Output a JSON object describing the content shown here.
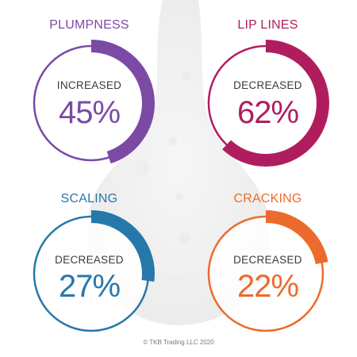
{
  "chart_data": [
    {
      "type": "pie",
      "title": "PLUMPNESS",
      "status": "INCREASED",
      "value": 45,
      "label": "45%",
      "color": "#7b4aa5"
    },
    {
      "type": "pie",
      "title": "LIP LINES",
      "status": "DECREASED",
      "value": 62,
      "label": "62%",
      "color": "#b01d5f"
    },
    {
      "type": "pie",
      "title": "SCALING",
      "status": "DECREASED",
      "value": 27,
      "label": "27%",
      "color": "#2778aa"
    },
    {
      "type": "pie",
      "title": "CRACKING",
      "status": "DECREASED",
      "value": 22,
      "label": "22%",
      "color": "#ec6b2c"
    }
  ],
  "footer": {
    "copyright": "© TKB Trading LLC 2020"
  }
}
